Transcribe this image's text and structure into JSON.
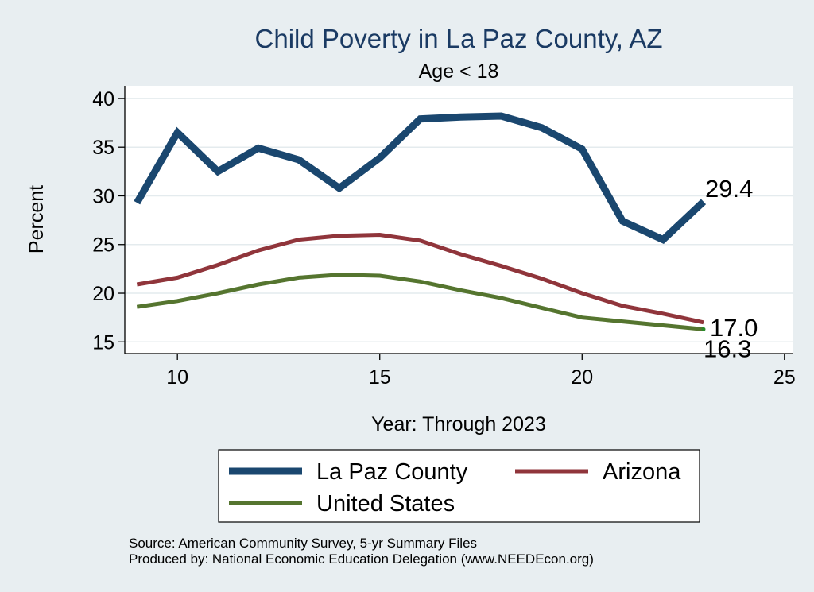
{
  "chart_data": {
    "type": "line",
    "title": "Child Poverty in La Paz County, AZ",
    "subtitle": "Age < 18",
    "xlabel": "Year: Through 2023",
    "ylabel": "Percent",
    "xlim": [
      8.7,
      25.2
    ],
    "ylim": [
      13.8,
      41.3
    ],
    "xticks": [
      10,
      15,
      20,
      25
    ],
    "yticks": [
      15,
      20,
      25,
      30,
      35,
      40
    ],
    "grid": true,
    "legend_position": "bottom",
    "series": [
      {
        "name": "La Paz County",
        "color": "#1a476f",
        "x": [
          9,
          10,
          11,
          12,
          13,
          14,
          15,
          16,
          17,
          18,
          19,
          20,
          21,
          22,
          23
        ],
        "values": [
          29.3,
          36.5,
          32.5,
          34.9,
          33.7,
          30.8,
          33.9,
          37.9,
          38.1,
          38.2,
          37.0,
          34.8,
          27.4,
          25.5,
          29.4
        ],
        "end_label": "29.4"
      },
      {
        "name": "Arizona",
        "color": "#90353b",
        "x": [
          9,
          10,
          11,
          12,
          13,
          14,
          15,
          16,
          17,
          18,
          19,
          20,
          21,
          22,
          23
        ],
        "values": [
          20.9,
          21.6,
          22.9,
          24.4,
          25.5,
          25.9,
          26.0,
          25.4,
          24.0,
          22.8,
          21.5,
          20.0,
          18.7,
          17.9,
          17.0
        ],
        "end_label": "17.0"
      },
      {
        "name": "United States",
        "color": "#55752f",
        "x": [
          9,
          10,
          11,
          12,
          13,
          14,
          15,
          16,
          17,
          18,
          19,
          20,
          21,
          22,
          23
        ],
        "values": [
          18.6,
          19.2,
          20.0,
          20.9,
          21.6,
          21.9,
          21.8,
          21.2,
          20.3,
          19.5,
          18.5,
          17.5,
          17.1,
          16.7,
          16.3
        ],
        "end_label": "16.3"
      }
    ]
  },
  "footer": {
    "source": "Source: American Community Survey, 5-yr Summary Files",
    "produced_by": "Produced by: National Economic Education Delegation (www.NEEDEcon.org)"
  }
}
